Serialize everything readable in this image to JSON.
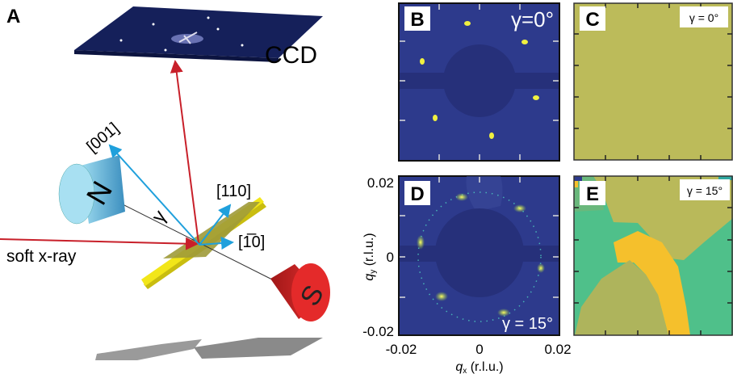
{
  "panel_a": {
    "letter": "A",
    "detector_label": "CCD",
    "beam_label": "soft x-ray",
    "axis_001": "[001]",
    "axis_110": "[110]",
    "axis_1m10": "[1̅0]",
    "axis_1m10_prefix": "[1",
    "axis_1m10_bar": "1̄",
    "axis_1m10_suffix": "0]",
    "angle_label": "γ",
    "magnet_north": "N",
    "magnet_south": "S"
  },
  "panel_b": {
    "letter": "B",
    "angle": "γ=0°"
  },
  "panel_c": {
    "letter": "C",
    "angle": "γ = 0°"
  },
  "panel_d": {
    "letter": "D",
    "angle": "γ = 15°"
  },
  "panel_e": {
    "letter": "E",
    "angle": "γ = 15°"
  },
  "axes": {
    "x_label": "qₓ (r.l.u.)",
    "x_label_q": "q",
    "x_label_sub": "x",
    "x_label_unit": " (r.l.u.)",
    "y_label_q": "q",
    "y_label_sub": "y",
    "y_label_unit": " (r.l.u.)",
    "x_ticks": [
      "-0.02",
      "0",
      "0.02"
    ],
    "y_ticks": [
      "0.02",
      "0",
      "-0.02"
    ]
  },
  "colors": {
    "beam": "#c8202a",
    "crystal_axes": "#1fa0dc",
    "detector_bg": "#2d3a8c",
    "map_uniform": "#bcbb5a",
    "domain_yellow": "#f5c02c",
    "domain_green": "#4fc08a",
    "sample": "#f2e619"
  }
}
